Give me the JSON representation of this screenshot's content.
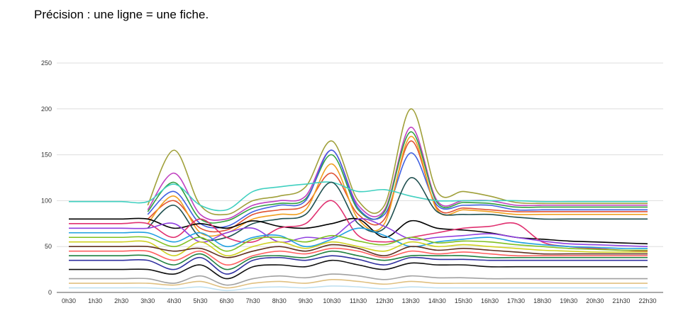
{
  "caption": "Précision : une ligne = une fiche.",
  "chart_data": {
    "type": "line",
    "curve": "smooth",
    "series_count_note": "",
    "categories": [
      "0h30",
      "1h30",
      "2h30",
      "3h30",
      "4h30",
      "5h30",
      "6h30",
      "7h30",
      "8h30",
      "9h30",
      "10h30",
      "11h30",
      "12h30",
      "13h30",
      "14h30",
      "15h30",
      "16h30",
      "17h30",
      "18h30",
      "19h30",
      "20h30",
      "21h30",
      "22h30"
    ],
    "ylim": [
      0,
      250
    ],
    "yticks": [
      0,
      50,
      100,
      150,
      200,
      250
    ],
    "grid": true,
    "legend": "none",
    "title": "",
    "xlabel": "",
    "ylabel": "",
    "series": [
      {
        "color": "#a0a03a",
        "values": [
          null,
          null,
          null,
          95,
          155,
          95,
          85,
          100,
          105,
          115,
          165,
          100,
          95,
          200,
          110,
          110,
          105,
          98,
          97,
          97,
          97,
          97,
          97
        ]
      },
      {
        "color": "#c040c0",
        "values": [
          null,
          null,
          null,
          90,
          130,
          85,
          80,
          95,
          100,
          105,
          155,
          95,
          90,
          180,
          100,
          100,
          100,
          95,
          95,
          95,
          95,
          95,
          95
        ]
      },
      {
        "color": "#30a040",
        "values": [
          null,
          null,
          null,
          88,
          120,
          80,
          78,
          92,
          97,
          102,
          150,
          90,
          88,
          175,
          98,
          98,
          97,
          93,
          93,
          93,
          93,
          93,
          93
        ]
      },
      {
        "color": "#4060e0",
        "values": [
          null,
          null,
          null,
          85,
          110,
          75,
          72,
          88,
          95,
          100,
          155,
          92,
          85,
          152,
          95,
          95,
          95,
          90,
          90,
          90,
          90,
          90,
          90
        ]
      },
      {
        "color": "#e05030",
        "values": [
          null,
          null,
          null,
          80,
          100,
          70,
          68,
          85,
          90,
          95,
          130,
          85,
          80,
          165,
          92,
          92,
          90,
          88,
          88,
          88,
          88,
          88,
          88
        ]
      },
      {
        "color": "#f0a020",
        "values": [
          null,
          null,
          null,
          75,
          105,
          65,
          65,
          80,
          85,
          90,
          140,
          80,
          75,
          170,
          90,
          90,
          88,
          85,
          85,
          85,
          85,
          85,
          85
        ]
      },
      {
        "color": "#40d0c0",
        "values": [
          99,
          99,
          99,
          99,
          118,
          95,
          90,
          110,
          115,
          118,
          120,
          110,
          112,
          105,
          100,
          100,
          100,
          100,
          99,
          99,
          99,
          99,
          99
        ]
      },
      {
        "color": "#205050",
        "values": [
          null,
          null,
          null,
          70,
          95,
          60,
          60,
          75,
          80,
          85,
          120,
          75,
          70,
          125,
          88,
          85,
          85,
          82,
          80,
          80,
          80,
          80,
          80
        ]
      },
      {
        "color": "#000000",
        "values": [
          80,
          80,
          80,
          80,
          70,
          75,
          70,
          78,
          72,
          70,
          75,
          80,
          60,
          78,
          70,
          68,
          65,
          60,
          58,
          56,
          55,
          54,
          53
        ]
      },
      {
        "color": "#e03070",
        "values": [
          75,
          75,
          75,
          75,
          60,
          80,
          60,
          55,
          70,
          75,
          100,
          62,
          55,
          60,
          65,
          70,
          72,
          75,
          55,
          50,
          48,
          46,
          45
        ]
      },
      {
        "color": "#9040e0",
        "values": [
          70,
          70,
          70,
          70,
          75,
          55,
          65,
          70,
          55,
          60,
          60,
          80,
          72,
          58,
          60,
          62,
          64,
          60,
          56,
          53,
          52,
          51,
          50
        ]
      },
      {
        "color": "#20a0e0",
        "values": [
          65,
          65,
          65,
          65,
          55,
          65,
          50,
          60,
          62,
          50,
          58,
          70,
          62,
          50,
          55,
          58,
          60,
          55,
          52,
          50,
          49,
          48,
          48
        ]
      },
      {
        "color": "#80c020",
        "values": [
          60,
          60,
          60,
          60,
          50,
          60,
          45,
          58,
          60,
          55,
          62,
          56,
          52,
          60,
          54,
          56,
          55,
          52,
          50,
          48,
          47,
          46,
          46
        ]
      },
      {
        "color": "#d0d020",
        "values": [
          55,
          55,
          55,
          55,
          40,
          55,
          40,
          50,
          55,
          48,
          55,
          50,
          45,
          55,
          50,
          52,
          50,
          48,
          46,
          45,
          44,
          44,
          44
        ]
      },
      {
        "color": "#603020",
        "values": [
          50,
          50,
          50,
          50,
          45,
          48,
          38,
          45,
          50,
          45,
          52,
          48,
          40,
          50,
          46,
          48,
          46,
          44,
          42,
          42,
          42,
          42,
          42
        ]
      },
      {
        "color": "#ff6060",
        "values": [
          45,
          45,
          45,
          45,
          35,
          45,
          30,
          40,
          45,
          42,
          48,
          45,
          38,
          45,
          42,
          44,
          42,
          40,
          40,
          40,
          40,
          40,
          40
        ]
      },
      {
        "color": "#208040",
        "values": [
          40,
          40,
          40,
          40,
          30,
          42,
          25,
          38,
          40,
          38,
          45,
          40,
          35,
          40,
          40,
          40,
          38,
          38,
          38,
          38,
          38,
          38,
          38
        ]
      },
      {
        "color": "#3030a0",
        "values": [
          35,
          35,
          35,
          35,
          25,
          38,
          20,
          35,
          38,
          35,
          40,
          36,
          30,
          38,
          36,
          36,
          35,
          35,
          35,
          35,
          35,
          35,
          35
        ]
      },
      {
        "color": "#101010",
        "values": [
          25,
          25,
          25,
          25,
          20,
          30,
          15,
          28,
          30,
          28,
          35,
          30,
          25,
          32,
          30,
          30,
          28,
          28,
          28,
          28,
          28,
          28,
          28
        ]
      },
      {
        "color": "#a0a0a0",
        "values": [
          15,
          15,
          15,
          15,
          10,
          18,
          8,
          15,
          18,
          16,
          20,
          18,
          14,
          18,
          16,
          16,
          15,
          15,
          15,
          15,
          15,
          15,
          15
        ]
      },
      {
        "color": "#e0c080",
        "values": [
          10,
          10,
          10,
          10,
          8,
          12,
          5,
          10,
          12,
          10,
          14,
          12,
          9,
          12,
          10,
          10,
          10,
          10,
          10,
          10,
          10,
          10,
          10
        ]
      },
      {
        "color": "#c0e0f0",
        "values": [
          5,
          5,
          5,
          5,
          4,
          6,
          2,
          5,
          6,
          5,
          7,
          6,
          4,
          6,
          5,
          5,
          5,
          5,
          5,
          5,
          5,
          5,
          5
        ]
      }
    ]
  }
}
